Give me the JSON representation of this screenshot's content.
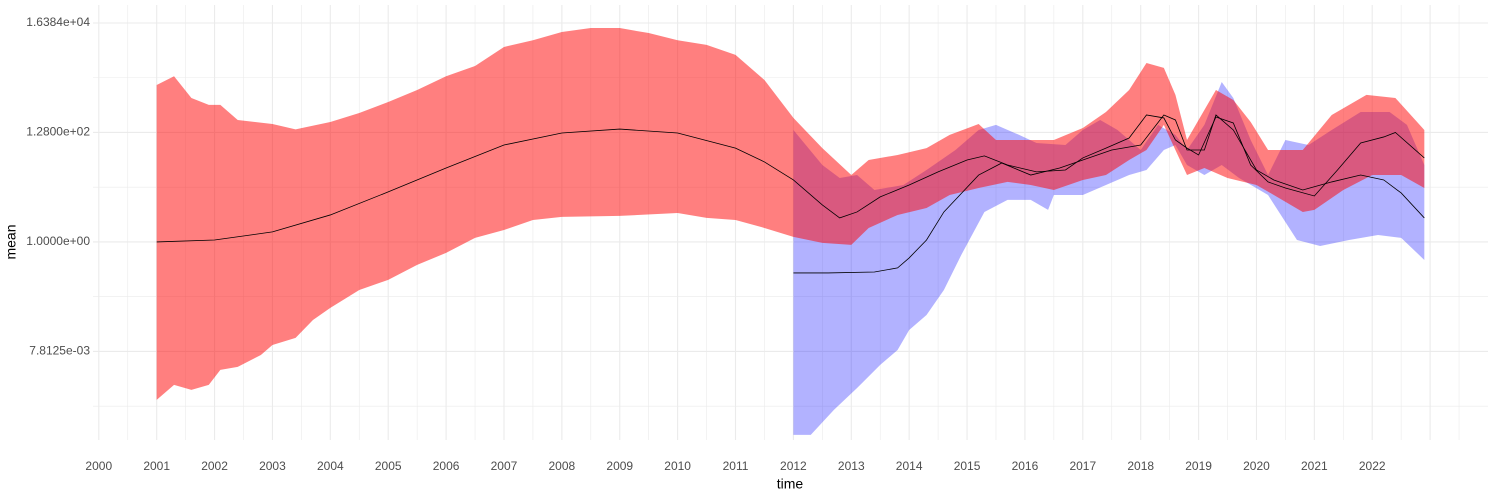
{
  "chart_data": {
    "type": "ribbon",
    "x_label": "time",
    "y_label": "mean",
    "log_scale_y": true,
    "log_base": 2,
    "grid": true,
    "xlim": [
      1999.9,
      2024
    ],
    "xticks": [
      2000,
      2001,
      2002,
      2003,
      2004,
      2005,
      2006,
      2007,
      2008,
      2009,
      2010,
      2011,
      2012,
      2013,
      2014,
      2015,
      2016,
      2017,
      2018,
      2019,
      2020,
      2021,
      2022
    ],
    "ylim": [
      0.000154,
      36400
    ],
    "yticks": [
      {
        "value": 0.0078125,
        "label": "7.8125e-03"
      },
      {
        "value": 1,
        "label": "1.0000e+00"
      },
      {
        "value": 128,
        "label": "1.2800e+02"
      },
      {
        "value": 16384,
        "label": "1.6384e+04"
      }
    ],
    "ribbons": [
      {
        "color": "#0000ff",
        "opacity": 0.3,
        "upper_x": [
          2012.0,
          2012.5,
          2012.8,
          2013.1,
          2013.4,
          2013.9,
          2014.3,
          2014.8,
          2015.2,
          2015.5,
          2015.9,
          2016.2,
          2016.7,
          2017.0,
          2017.3,
          2017.6,
          2018.0,
          2018.3,
          2018.6,
          2018.8,
          2019.1,
          2019.4,
          2019.6,
          2019.9,
          2020.2,
          2020.5,
          2020.9,
          2021.3,
          2021.8,
          2022.3,
          2022.6,
          2022.9
        ],
        "upper": [
          143,
          30.3,
          17,
          19.4,
          10,
          12.5,
          24.3,
          58.9,
          143,
          179,
          115,
          80.5,
          73.5,
          143,
          223,
          143,
          58.9,
          179,
          115,
          58.9,
          179,
          1200,
          590,
          91.8,
          19.4,
          91.8,
          73.5,
          143,
          317,
          317,
          179,
          30.3
        ],
        "lower_x": [
          2012.0,
          2012.3,
          2012.7,
          2013.1,
          2013.5,
          2013.8,
          2014.0,
          2014.3,
          2014.6,
          2014.9,
          2015.3,
          2015.7,
          2016.1,
          2016.4,
          2016.5,
          2017.0,
          2017.4,
          2017.8,
          2018.1,
          2018.4,
          2018.6,
          2018.8,
          2019.1,
          2019.4,
          2019.7,
          2020.2,
          2020.7,
          2021.1,
          2021.6,
          2022.1,
          2022.5,
          2022.9
        ],
        "lower": [
          0.000193,
          0.000193,
          0.000584,
          0.00154,
          0.0043,
          0.0083,
          0.0202,
          0.0393,
          0.119,
          0.562,
          3.78,
          6.45,
          6.45,
          4.14,
          8,
          8,
          12.5,
          19.4,
          24.3,
          58.9,
          73.5,
          30.3,
          19.4,
          30.3,
          17,
          8,
          1.09,
          0.835,
          1.09,
          1.36,
          1.2,
          0.45
        ]
      },
      {
        "color": "#ff0000",
        "opacity": 0.5,
        "upper_x": [
          2001.0,
          2001.3,
          2001.6,
          2001.9,
          2002.1,
          2002.4,
          2003.0,
          2003.4,
          2004.0,
          2004.5,
          2005.0,
          2005.5,
          2006.0,
          2006.5,
          2007.0,
          2007.5,
          2008.0,
          2008.5,
          2009.0,
          2009.5,
          2010.0,
          2010.5,
          2011.0,
          2011.5,
          2012.0,
          2012.5,
          2013.0,
          2013.3,
          2013.8,
          2014.3,
          2014.7,
          2015.2,
          2015.5,
          2016.0,
          2016.5,
          2017.0,
          2017.4,
          2017.8,
          2018.1,
          2018.4,
          2018.6,
          2018.8,
          2019.1,
          2019.3,
          2019.6,
          2019.9,
          2020.2,
          2020.8,
          2021.3,
          2021.9,
          2022.4,
          2022.9
        ],
        "upper": [
          1050,
          1550,
          590,
          434,
          434,
          223,
          186,
          147,
          204,
          304,
          495,
          843,
          1550,
          2440,
          5670,
          7640,
          11000,
          13100,
          13100,
          10500,
          7640,
          6210,
          3980,
          1310,
          244,
          64,
          19.4,
          37.8,
          47.2,
          64,
          115,
          186,
          91.8,
          91.8,
          91.8,
          156,
          317,
          843,
          2780,
          2240,
          676,
          91.8,
          347,
          843,
          541,
          204,
          58.9,
          58.9,
          278,
          676,
          590,
          143
        ],
        "lower_x": [
          2001.0,
          2001.3,
          2001.6,
          2001.9,
          2002.1,
          2002.4,
          2002.8,
          2003.0,
          2003.4,
          2003.7,
          2004.0,
          2004.5,
          2005.0,
          2005.5,
          2006.0,
          2006.5,
          2007.0,
          2007.5,
          2008.0,
          2009.0,
          2010.0,
          2010.5,
          2011.0,
          2011.5,
          2012.0,
          2012.5,
          2013.0,
          2013.3,
          2013.8,
          2014.3,
          2014.7,
          2015.2,
          2015.7,
          2016.1,
          2016.5,
          2017.0,
          2017.4,
          2017.8,
          2018.1,
          2018.4,
          2018.6,
          2018.8,
          2019.1,
          2019.5,
          2020.0,
          2020.3,
          2020.8,
          2021.0,
          2021.5,
          2022.0,
          2022.5,
          2022.9
        ],
        "lower": [
          0.000913,
          0.00177,
          0.00142,
          0.00177,
          0.00345,
          0.00394,
          0.00666,
          0.0104,
          0.0142,
          0.0315,
          0.0537,
          0.119,
          0.186,
          0.361,
          0.616,
          1.2,
          1.7,
          2.65,
          3.03,
          3.17,
          3.61,
          2.9,
          2.65,
          1.86,
          1.25,
          0.958,
          0.876,
          1.86,
          3.31,
          4.51,
          8,
          10.9,
          14.3,
          12.5,
          10,
          15.6,
          19.4,
          37.8,
          58.9,
          179,
          58.9,
          19.4,
          26.5,
          17,
          12.5,
          8,
          3.78,
          4.14,
          10,
          19.4,
          19.4,
          10.9
        ]
      }
    ],
    "lines": [
      {
        "color": "#000000",
        "x": [
          2001.0,
          2002.0,
          2003.0,
          2004.0,
          2005.0,
          2006.0,
          2007.0,
          2008.0,
          2009.0,
          2010.0,
          2011.0,
          2011.5,
          2012.0,
          2012.5,
          2012.8,
          2013.1,
          2013.5,
          2014.0,
          2014.5,
          2015.0,
          2015.3,
          2015.7,
          2016.2,
          2016.7,
          2017.0,
          2017.4,
          2017.8,
          2018.1,
          2018.4,
          2018.6,
          2018.8,
          2019.0,
          2019.3,
          2019.6,
          2019.9,
          2020.2,
          2020.5,
          2021.0,
          2021.4,
          2021.8,
          2022.2,
          2022.4,
          2022.9
        ],
        "values": [
          1,
          1.09,
          1.56,
          3.31,
          9.19,
          26.5,
          73.5,
          125,
          149,
          125,
          64,
          34.7,
          15.6,
          5.16,
          2.9,
          3.78,
          7.36,
          12.5,
          22.3,
          37.8,
          45.3,
          30.3,
          22.3,
          24.3,
          41.4,
          64,
          100,
          278,
          244,
          91.8,
          64,
          47.2,
          254,
          195,
          30.3,
          14.3,
          10.9,
          7.67,
          24.3,
          80.5,
          105,
          128,
          41.4
        ]
      },
      {
        "color": "#000000",
        "x": [
          2012.0,
          2012.6,
          2013.4,
          2013.8,
          2014.0,
          2014.3,
          2014.6,
          2015.2,
          2015.6,
          2016.1,
          2016.6,
          2017.1,
          2017.5,
          2018.0,
          2018.4,
          2018.6,
          2018.8,
          2019.1,
          2019.3,
          2019.6,
          2020.0,
          2020.3,
          2020.8,
          2021.3,
          2021.8,
          2022.2,
          2022.5,
          2022.9
        ],
        "values": [
          0.253,
          0.253,
          0.264,
          0.316,
          0.493,
          1.09,
          3.78,
          19.4,
          33.1,
          19.4,
          26.5,
          41.4,
          58.9,
          73.5,
          278,
          223,
          58.9,
          58.9,
          278,
          143,
          24.3,
          15.6,
          10,
          14.3,
          19.4,
          15.6,
          8.76,
          2.9
        ]
      }
    ]
  }
}
